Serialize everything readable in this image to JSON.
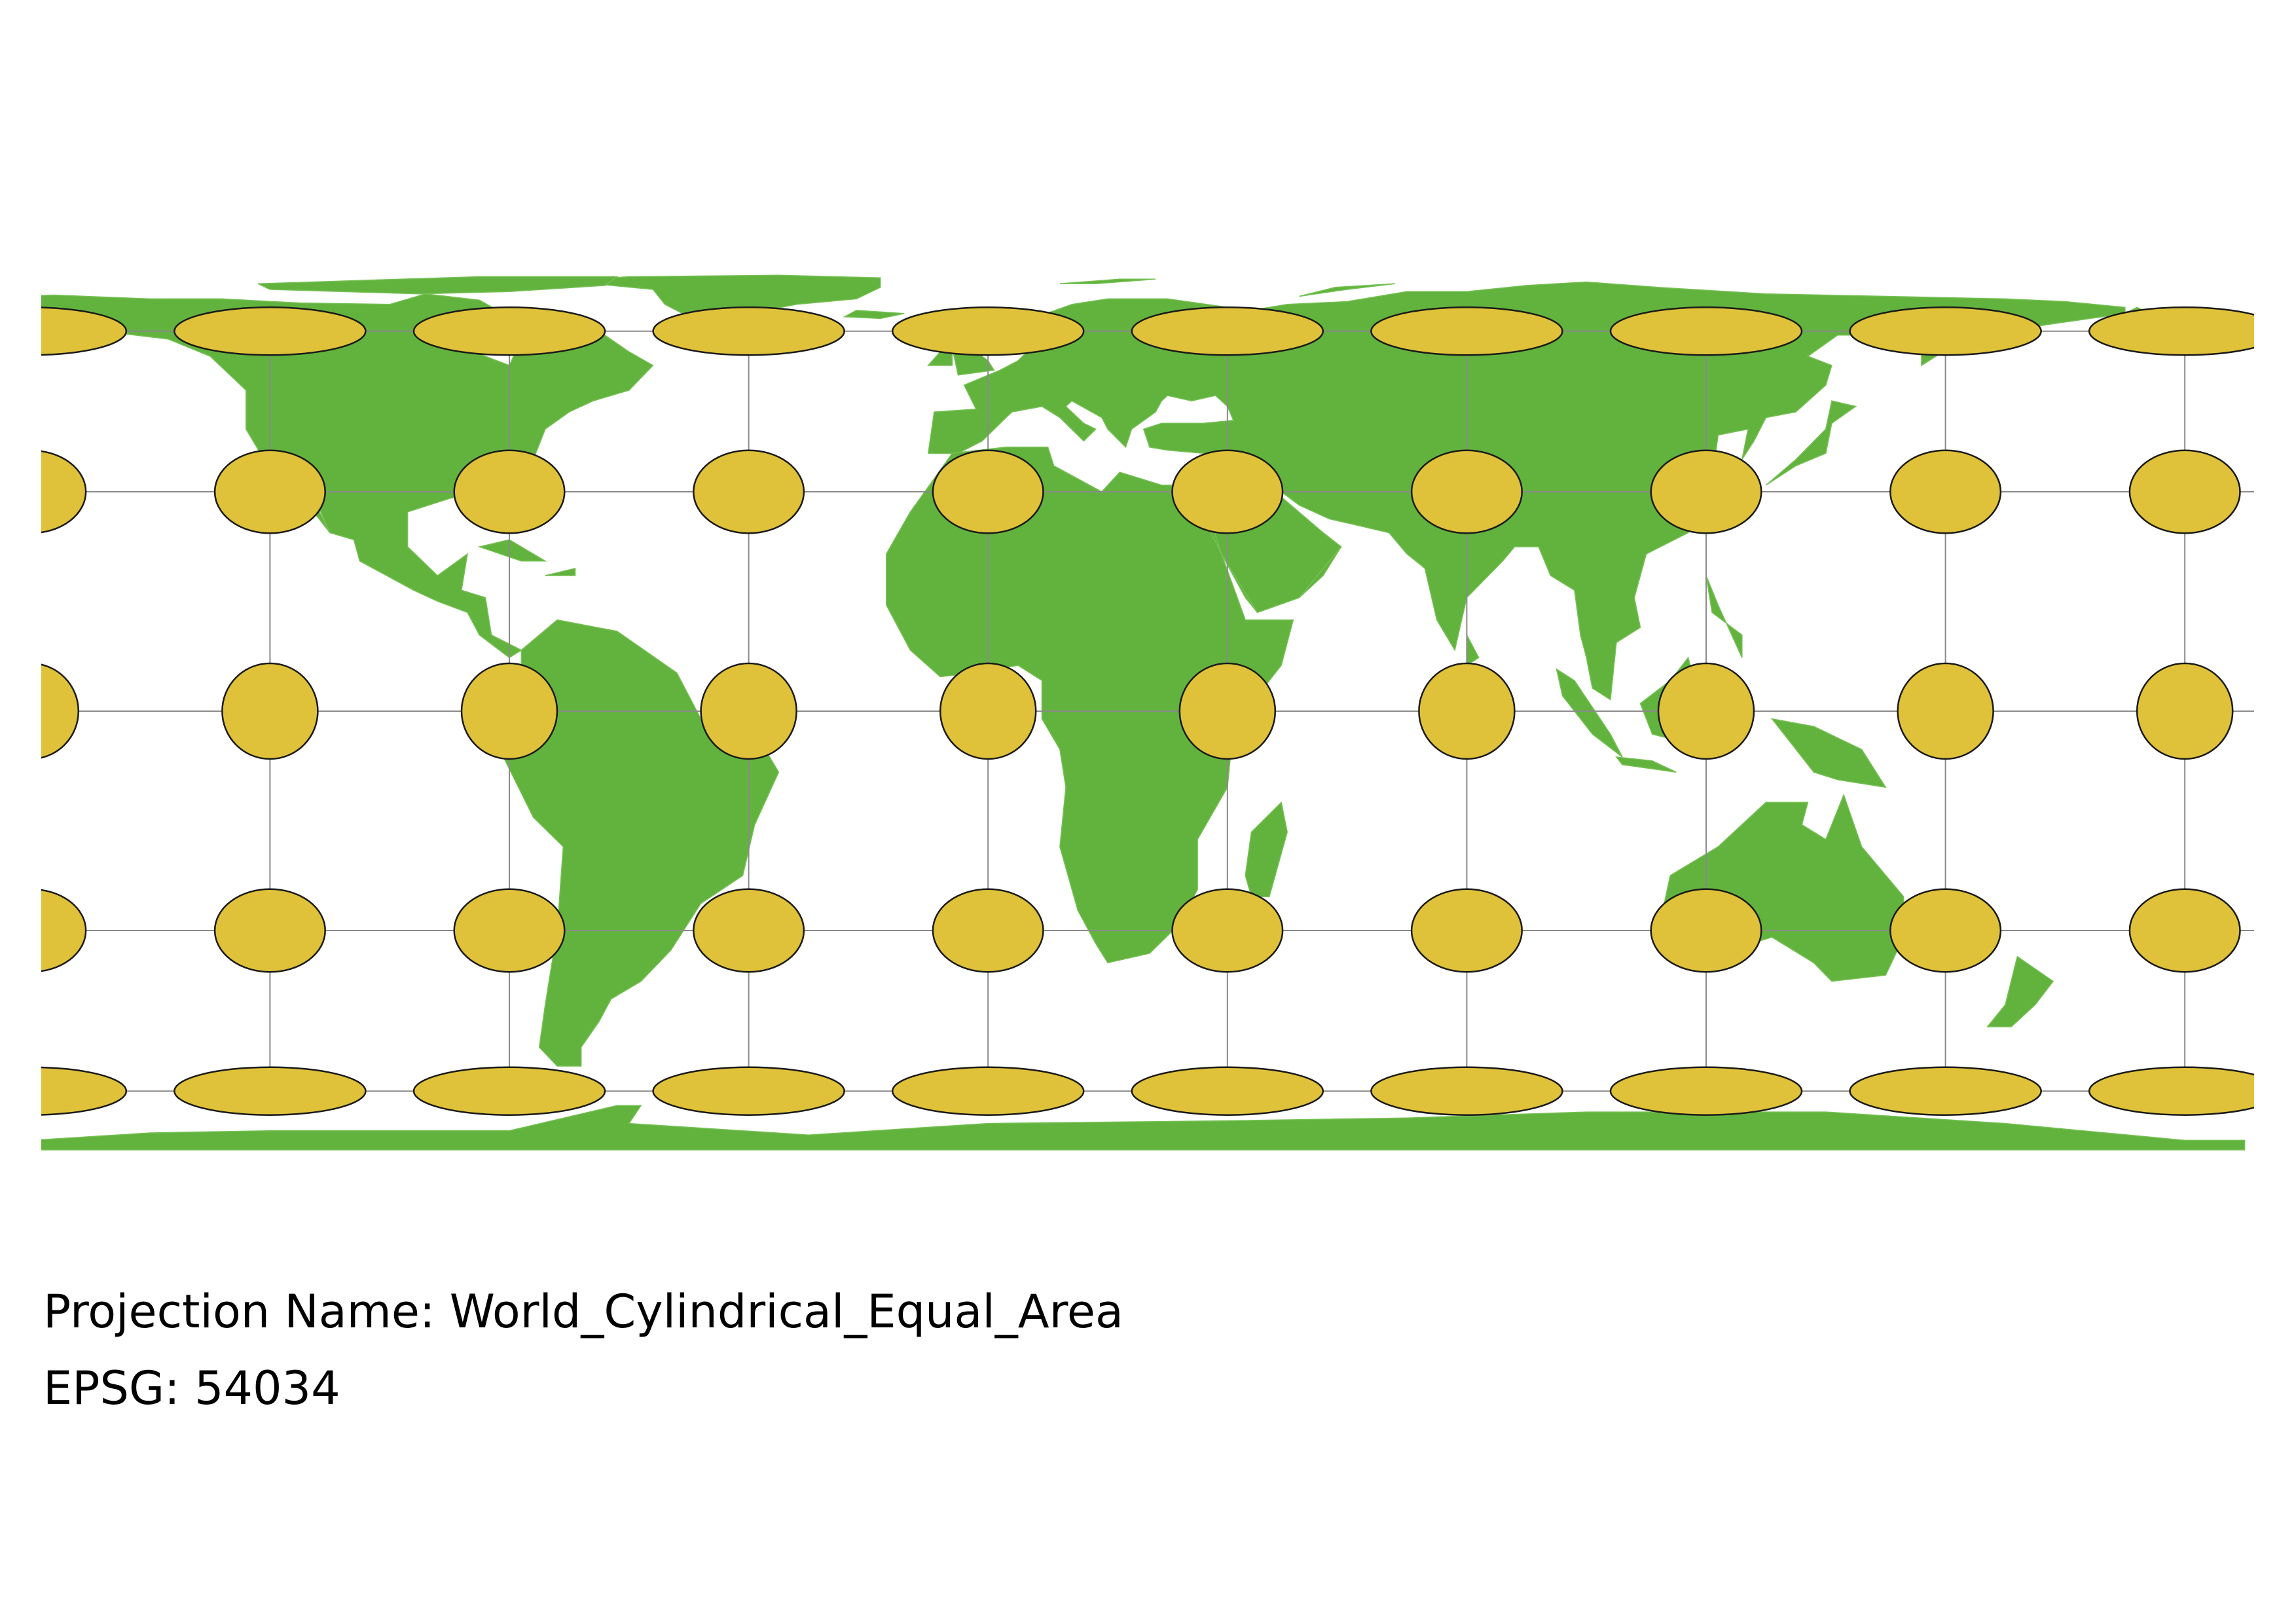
{
  "map": {
    "projection_name": "World_Cylindrical_Equal_Area",
    "epsg": "54034",
    "graticule": {
      "longitudes": [
        -160,
        -120,
        -80,
        -40,
        0,
        40,
        80,
        120,
        160,
        200
      ],
      "latitudes": [
        60,
        30,
        0,
        -30,
        -60
      ]
    },
    "indicatrix": {
      "radius_deg": 7.5,
      "centers_lon": [
        -160,
        -120,
        -80,
        -40,
        0,
        40,
        80,
        120,
        160,
        200
      ],
      "centers_lat": [
        60,
        30,
        0,
        -30,
        -60
      ]
    },
    "colors": {
      "land": "#62b33e",
      "land_border": "#76c055",
      "ocean": "#ffffff",
      "graticule": "#8a8a8a",
      "indicatrix_fill": "#dfc239",
      "indicatrix_stroke": "#1a1a1a"
    }
  },
  "caption": {
    "projection_label": "Projection Name: World_Cylindrical_Equal_Area",
    "epsg_label": "EPSG: 54034"
  }
}
